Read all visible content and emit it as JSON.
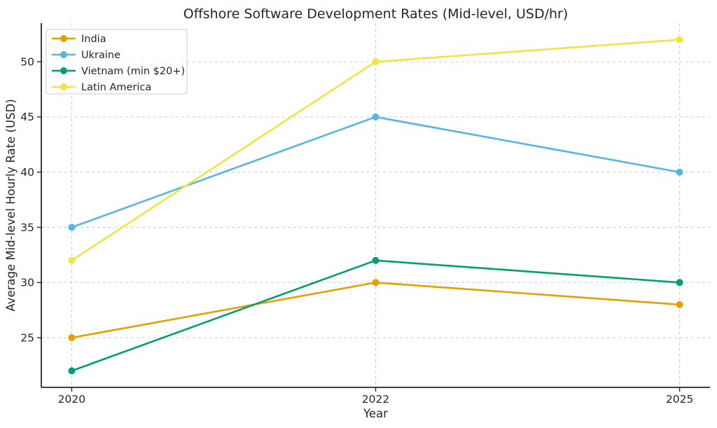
{
  "chart_data": {
    "type": "line",
    "title": "Offshore Software Development Rates (Mid-level, USD/hr)",
    "xlabel": "Year",
    "ylabel": "Average Mid-level Hourly Rate (USD)",
    "categories": [
      "2020",
      "2022",
      "2025"
    ],
    "series": [
      {
        "name": "India",
        "color": "#E69F00",
        "values": [
          25,
          30,
          28
        ]
      },
      {
        "name": "Ukraine",
        "color": "#56B4E9",
        "values": [
          35,
          45,
          40
        ]
      },
      {
        "name": "Vietnam (min $20+)",
        "color": "#009E73",
        "values": [
          22,
          32,
          30
        ]
      },
      {
        "name": "Latin America",
        "color": "#F0E442",
        "values": [
          32,
          50,
          52
        ]
      }
    ],
    "yticks": [
      25,
      30,
      35,
      40,
      45,
      50
    ],
    "ylim": [
      20.5,
      53.5
    ],
    "grid": true,
    "grid_style": "dashed",
    "legend_position": "upper-left",
    "marker": "circle",
    "line_width": 2.6,
    "marker_radius": 5,
    "axis_color": "#262626",
    "grid_color": "#cccccc",
    "text_color": "#262626",
    "background": "#ffffff"
  }
}
